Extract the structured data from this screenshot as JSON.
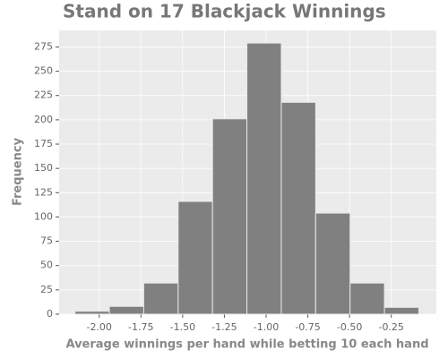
{
  "chart_data": {
    "type": "histogram",
    "title": "Stand on 17 Blackjack Winnings",
    "xlabel": "Average winnings per hand while betting 10 each hand",
    "ylabel": "Frequency",
    "bins": [
      -2.145,
      -1.939,
      -1.733,
      -1.527,
      -1.321,
      -1.115,
      -0.909,
      -0.703,
      -0.497,
      -0.291,
      -0.085
    ],
    "values": [
      3,
      8,
      32,
      116,
      201,
      279,
      218,
      104,
      32,
      7
    ],
    "color": "#808080",
    "grid": true,
    "xlim": [
      -2.24,
      0.02
    ],
    "ylim": [
      0,
      292
    ],
    "xticks": [
      {
        "value": -2,
        "label": "-2.00"
      },
      {
        "value": -1.75,
        "label": "-1.75"
      },
      {
        "value": -1.5,
        "label": "-1.50"
      },
      {
        "value": -1.25,
        "label": "-1.25"
      },
      {
        "value": -1,
        "label": "-1.00"
      },
      {
        "value": -0.75,
        "label": "-0.75"
      },
      {
        "value": -0.5,
        "label": "-0.50"
      },
      {
        "value": -0.25,
        "label": "-0.25"
      }
    ],
    "yticks": [
      0,
      25,
      50,
      75,
      100,
      125,
      150,
      175,
      200,
      225,
      250,
      275
    ]
  }
}
